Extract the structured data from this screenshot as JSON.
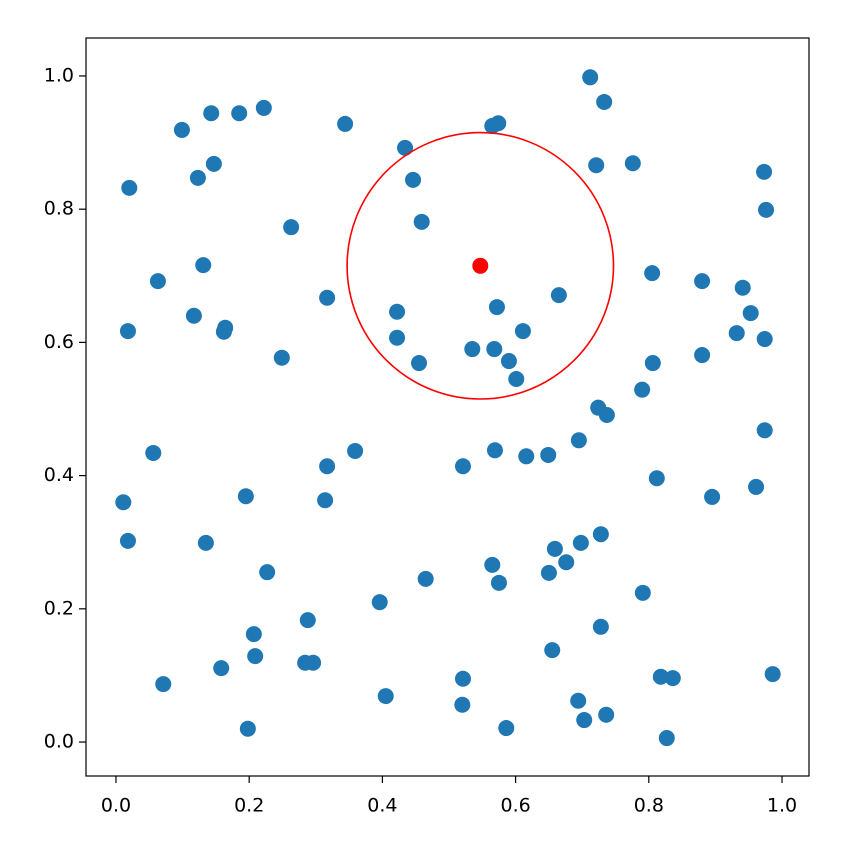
{
  "chart_data": {
    "type": "scatter",
    "xlim": [
      -0.045,
      1.0405
    ],
    "ylim": [
      -0.051,
      1.057
    ],
    "xticks": [
      {
        "value": 0,
        "label": "0.0"
      },
      0.2,
      0.4,
      0.6,
      0.8,
      {
        "value": 1,
        "label": "1.0"
      }
    ],
    "yticks": [
      {
        "value": 0,
        "label": "0.0"
      },
      0.2,
      0.4,
      0.6,
      0.8,
      {
        "value": 1,
        "label": "1.0"
      }
    ],
    "series": [
      {
        "color": "#1f77b4",
        "x": [
          0.712,
          0.733,
          0.222,
          0.185,
          0.143,
          0.099,
          0.344,
          0.565,
          0.574,
          0.434,
          0.147,
          0.776,
          0.721,
          0.123,
          0.446,
          0.973,
          0.02,
          0.976,
          0.459,
          0.263,
          0.131,
          0.063,
          0.805,
          0.88,
          0.941,
          0.665,
          0.317,
          0.572,
          0.953,
          0.422,
          0.117,
          0.164,
          0.162,
          0.018,
          0.611,
          0.932,
          0.974,
          0.422,
          0.535,
          0.568,
          0.59,
          0.455,
          0.249,
          0.88,
          0.806,
          0.601,
          0.79,
          0.724,
          0.737,
          0.974,
          0.695,
          0.056,
          0.359,
          0.569,
          0.616,
          0.649,
          0.317,
          0.521,
          0.812,
          0.961,
          0.895,
          0.195,
          0.011,
          0.314,
          0.728,
          0.698,
          0.018,
          0.135,
          0.659,
          0.676,
          0.565,
          0.65,
          0.227,
          0.465,
          0.575,
          0.791,
          0.396,
          0.288,
          0.728,
          0.207,
          0.655,
          0.209,
          0.284,
          0.296,
          0.158,
          0.986,
          0.818,
          0.836,
          0.071,
          0.521,
          0.405,
          0.694,
          0.52,
          0.736,
          0.703,
          0.198,
          0.586,
          0.827
        ],
        "y": [
          0.998,
          0.961,
          0.952,
          0.944,
          0.944,
          0.919,
          0.928,
          0.925,
          0.929,
          0.892,
          0.868,
          0.869,
          0.866,
          0.847,
          0.844,
          0.856,
          0.832,
          0.799,
          0.781,
          0.773,
          0.716,
          0.692,
          0.704,
          0.692,
          0.682,
          0.671,
          0.667,
          0.653,
          0.644,
          0.646,
          0.64,
          0.622,
          0.616,
          0.617,
          0.617,
          0.614,
          0.605,
          0.607,
          0.59,
          0.59,
          0.572,
          0.569,
          0.577,
          0.581,
          0.569,
          0.545,
          0.529,
          0.502,
          0.491,
          0.468,
          0.453,
          0.434,
          0.437,
          0.438,
          0.429,
          0.431,
          0.414,
          0.414,
          0.396,
          0.383,
          0.368,
          0.369,
          0.36,
          0.363,
          0.312,
          0.299,
          0.302,
          0.299,
          0.29,
          0.27,
          0.266,
          0.254,
          0.255,
          0.245,
          0.239,
          0.224,
          0.21,
          0.183,
          0.173,
          0.162,
          0.138,
          0.129,
          0.119,
          0.119,
          0.111,
          0.102,
          0.098,
          0.096,
          0.087,
          0.095,
          0.069,
          0.062,
          0.056,
          0.041,
          0.033,
          0.02,
          0.021,
          0.006
        ]
      }
    ],
    "circle": {
      "center": [
        0.547,
        0.715
      ],
      "radius": 0.2,
      "color": "#ff0000"
    }
  }
}
